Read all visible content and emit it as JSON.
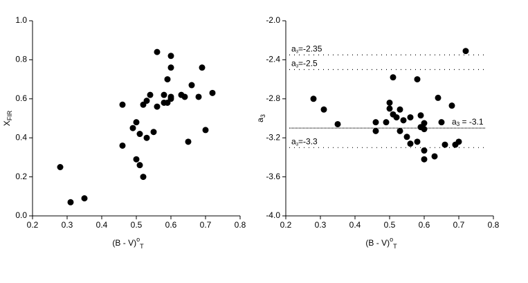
{
  "chart_data": [
    {
      "type": "scatter",
      "xlabel": "(B - V)",
      "xlabel_sup": "o",
      "xlabel_sub": "T",
      "ylabel": "X",
      "ylabel_sub": "FIR",
      "x": [
        0.28,
        0.31,
        0.35,
        0.46,
        0.46,
        0.49,
        0.5,
        0.5,
        0.51,
        0.51,
        0.52,
        0.52,
        0.53,
        0.53,
        0.54,
        0.55,
        0.56,
        0.56,
        0.58,
        0.58,
        0.59,
        0.59,
        0.6,
        0.6,
        0.6,
        0.6,
        0.63,
        0.64,
        0.65,
        0.66,
        0.68,
        0.69,
        0.7,
        0.72
      ],
      "values": [
        0.25,
        0.07,
        0.09,
        0.57,
        0.36,
        0.45,
        0.48,
        0.29,
        0.42,
        0.26,
        0.2,
        0.57,
        0.59,
        0.4,
        0.62,
        0.43,
        0.84,
        0.56,
        0.62,
        0.58,
        0.7,
        0.58,
        0.82,
        0.76,
        0.61,
        0.6,
        0.62,
        0.61,
        0.38,
        0.67,
        0.61,
        0.76,
        0.44,
        0.63
      ],
      "color": "#000000",
      "xlim": [
        0.2,
        0.8
      ],
      "xticks": [
        0.2,
        0.3,
        0.4,
        0.5,
        0.6,
        0.7,
        0.8
      ],
      "ylim": [
        0,
        1
      ],
      "yticks": [
        {
          "value": 0,
          "label": "0.0"
        },
        0.2,
        0.4,
        0.6,
        0.8,
        {
          "value": 1,
          "label": "1.0"
        }
      ]
    },
    {
      "type": "scatter",
      "xlabel": "(B - V)",
      "xlabel_sup": "o",
      "xlabel_sub": "T",
      "ylabel": "a",
      "ylabel_sub": "3",
      "x": [
        0.28,
        0.31,
        0.35,
        0.46,
        0.46,
        0.49,
        0.5,
        0.5,
        0.51,
        0.51,
        0.52,
        0.53,
        0.53,
        0.54,
        0.55,
        0.56,
        0.56,
        0.58,
        0.58,
        0.59,
        0.59,
        0.6,
        0.6,
        0.6,
        0.6,
        0.63,
        0.64,
        0.65,
        0.66,
        0.68,
        0.69,
        0.7,
        0.72
      ],
      "values": [
        -2.8,
        -2.91,
        -3.06,
        -3.04,
        -3.13,
        -3.04,
        -2.84,
        -2.9,
        -2.58,
        -2.96,
        -2.99,
        -2.91,
        -3.13,
        -3.02,
        -3.19,
        -2.99,
        -3.26,
        -2.6,
        -3.24,
        -2.97,
        -3.09,
        -3.11,
        -3.05,
        -3.33,
        -3.42,
        -3.39,
        -2.79,
        -3.04,
        -3.27,
        -2.87,
        -3.27,
        -3.24,
        -2.31
      ],
      "color": "#000000",
      "xlim": [
        0.2,
        0.8
      ],
      "xticks": [
        0.2,
        0.3,
        0.4,
        0.5,
        0.6,
        0.7,
        0.8
      ],
      "ylim": [
        -4,
        -2
      ],
      "yticks": [
        {
          "value": -4,
          "label": "-4.0"
        },
        -3.6,
        -3.2,
        -2.8,
        -2.4,
        {
          "value": -2,
          "label": "-2.0"
        }
      ],
      "hlines": [
        {
          "value": -2.35,
          "name": "a",
          "sub": "3",
          "text": "=-2.35",
          "side": "left"
        },
        {
          "value": -2.5,
          "name": "a",
          "sub": "3",
          "text": "=-2.5",
          "side": "left"
        },
        {
          "value": -3.1,
          "name": "a",
          "sub": "3",
          "text": " = -3.1",
          "side": "right"
        },
        {
          "value": -3.3,
          "name": "a",
          "sub": "3",
          "text": "=-3.3",
          "side": "left"
        }
      ]
    }
  ]
}
